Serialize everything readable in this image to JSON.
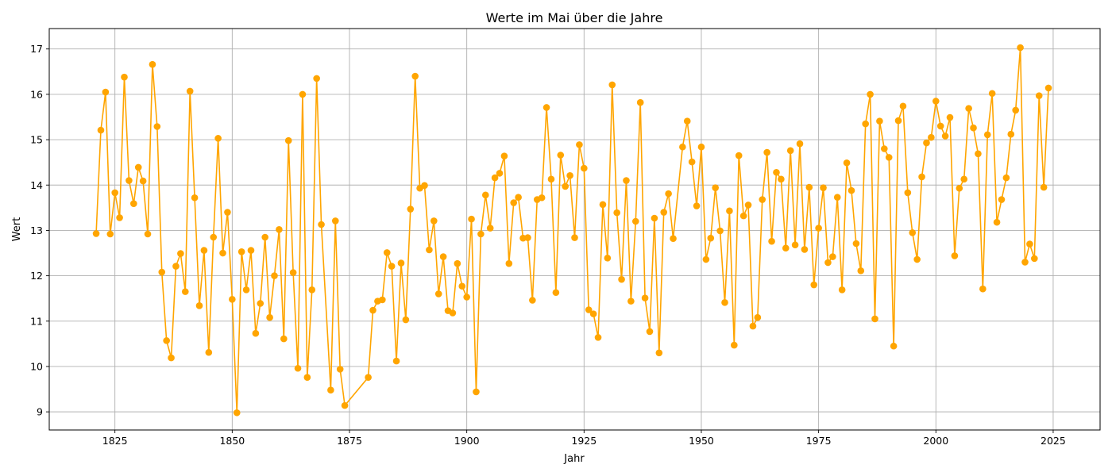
{
  "chart_data": {
    "type": "line",
    "title": "Werte im Mai über die Jahre",
    "xlabel": "Jahr",
    "ylabel": "Wert",
    "xlim": [
      1811,
      2035
    ],
    "ylim": [
      8.6,
      17.45
    ],
    "xticks": [
      1825,
      1850,
      1875,
      1900,
      1925,
      1950,
      1975,
      2000,
      2025
    ],
    "yticks": [
      9,
      10,
      11,
      12,
      13,
      14,
      15,
      16,
      17
    ],
    "grid": true,
    "colors": {
      "series": "#ffa500",
      "axes": "#000000",
      "grid": "#b0b0b0"
    },
    "series": [
      {
        "x": [
          1821,
          1822,
          1823,
          1824,
          1825,
          1826,
          1827,
          1828,
          1829,
          1830,
          1831,
          1832,
          1833,
          1834,
          1835,
          1836,
          1837,
          1838,
          1839,
          1840,
          1841,
          1842,
          1843,
          1844,
          1845,
          1846,
          1847,
          1848,
          1849,
          1850,
          1851,
          1852,
          1853,
          1854,
          1855,
          1856,
          1857,
          1858,
          1859,
          1860,
          1861,
          1862,
          1863,
          1864,
          1865,
          1866,
          1867,
          1868,
          1869,
          1871,
          1872,
          1873,
          1874,
          1879,
          1880,
          1881,
          1882,
          1883,
          1884,
          1885,
          1886,
          1887,
          1888,
          1889,
          1890,
          1891,
          1892,
          1893,
          1894,
          1895,
          1896,
          1897,
          1898,
          1899,
          1900,
          1901,
          1902,
          1903,
          1904,
          1905,
          1906,
          1907,
          1908,
          1909,
          1910,
          1911,
          1912,
          1913,
          1914,
          1915,
          1916,
          1917,
          1918,
          1919,
          1920,
          1921,
          1922,
          1923,
          1924,
          1925,
          1926,
          1927,
          1928,
          1929,
          1930,
          1931,
          1932,
          1933,
          1934,
          1935,
          1936,
          1937,
          1938,
          1939,
          1940,
          1941,
          1942,
          1943,
          1944,
          1946,
          1947,
          1948,
          1949,
          1950,
          1951,
          1952,
          1953,
          1954,
          1955,
          1956,
          1957,
          1958,
          1959,
          1960,
          1961,
          1962,
          1963,
          1964,
          1965,
          1966,
          1967,
          1968,
          1969,
          1970,
          1971,
          1972,
          1973,
          1974,
          1975,
          1976,
          1977,
          1978,
          1979,
          1980,
          1981,
          1982,
          1983,
          1984,
          1985,
          1986,
          1987,
          1988,
          1989,
          1990,
          1991,
          1992,
          1993,
          1994,
          1995,
          1996,
          1997,
          1998,
          1999,
          2000,
          2001,
          2002,
          2003,
          2004,
          2005,
          2006,
          2007,
          2008,
          2009,
          2010,
          2011,
          2012,
          2013,
          2014,
          2015,
          2016,
          2017,
          2018,
          2019,
          2020,
          2021,
          2022,
          2023,
          2024
        ],
        "values": [
          12.93,
          15.21,
          16.05,
          12.92,
          13.83,
          13.28,
          16.38,
          14.1,
          13.59,
          14.39,
          14.09,
          12.92,
          16.66,
          15.29,
          12.08,
          10.57,
          10.19,
          12.21,
          12.49,
          11.65,
          16.07,
          13.72,
          11.34,
          12.56,
          10.31,
          12.85,
          15.03,
          12.5,
          13.4,
          11.48,
          8.98,
          12.53,
          11.69,
          12.56,
          10.73,
          11.39,
          12.85,
          11.08,
          12.0,
          13.02,
          10.61,
          14.98,
          12.07,
          9.96,
          16.0,
          9.76,
          11.69,
          16.35,
          13.13,
          9.48,
          13.21,
          9.94,
          9.14,
          9.76,
          11.24,
          11.44,
          11.47,
          12.51,
          12.21,
          10.12,
          12.28,
          11.03,
          13.47,
          16.4,
          13.93,
          13.99,
          12.57,
          13.21,
          11.6,
          12.42,
          11.23,
          11.18,
          12.27,
          11.77,
          11.53,
          13.25,
          9.44,
          12.92,
          13.78,
          13.05,
          14.16,
          14.26,
          14.64,
          12.27,
          13.61,
          13.73,
          12.83,
          12.84,
          11.46,
          13.68,
          13.72,
          15.71,
          14.13,
          11.63,
          14.66,
          13.97,
          14.21,
          12.84,
          14.89,
          14.37,
          11.25,
          11.16,
          10.64,
          13.57,
          12.39,
          16.21,
          13.39,
          11.92,
          14.1,
          11.44,
          13.2,
          15.82,
          11.51,
          10.77,
          13.27,
          10.3,
          13.4,
          13.81,
          12.82,
          14.84,
          15.41,
          14.51,
          13.54,
          14.84,
          12.36,
          12.83,
          13.94,
          12.99,
          11.41,
          13.43,
          10.47,
          14.65,
          13.32,
          13.56,
          10.89,
          11.08,
          13.68,
          14.72,
          12.76,
          14.28,
          14.13,
          12.61,
          14.76,
          12.68,
          14.91,
          12.58,
          13.95,
          11.8,
          13.05,
          13.94,
          12.29,
          12.42,
          13.73,
          11.69,
          14.49,
          13.88,
          12.71,
          12.11,
          15.35,
          16.0,
          11.05,
          15.41,
          14.8,
          14.61,
          10.45,
          15.42,
          15.74,
          13.83,
          12.95,
          12.36,
          14.18,
          14.93,
          15.05,
          15.85,
          15.3,
          15.08,
          15.49,
          12.44,
          13.93,
          14.13,
          15.69,
          15.26,
          14.69,
          11.71,
          15.11,
          16.02,
          13.18,
          13.68,
          14.16,
          15.12,
          15.65,
          17.03,
          12.3,
          12.7,
          12.38,
          15.97,
          13.95,
          16.14
        ]
      }
    ]
  }
}
